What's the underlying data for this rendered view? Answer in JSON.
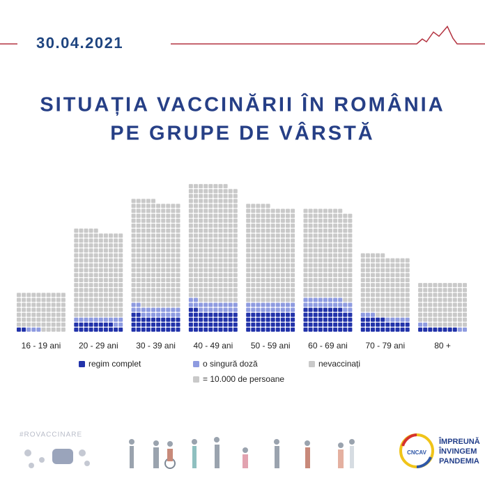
{
  "header": {
    "date": "30.04.2021"
  },
  "chart_data": {
    "type": "waffle",
    "title": [
      "SITUAȚIA VACCINĂRII ÎN ROMÂNIA",
      "PE GRUPE DE VÂRSTĂ"
    ],
    "categories": [
      "16 - 19 ani",
      "20 - 29 ani",
      "30 - 39 ani",
      "40 - 49 ani",
      "50 - 59 ani",
      "60 - 69 ani",
      "70 - 79 ani",
      "80 +"
    ],
    "square_value": {
      "value": 10000,
      "label": "= 10.000 de persoane"
    },
    "columns": 10,
    "series": [
      {
        "name": "regim complet",
        "color": "#2233aa",
        "values": [
          20000,
          180000,
          320000,
          420000,
          400000,
          480000,
          250000,
          80000
        ]
      },
      {
        "name": "o singură doză",
        "color": "#8e9be0",
        "values": [
          30000,
          120000,
          200000,
          200000,
          200000,
          200000,
          80000,
          40000
        ]
      },
      {
        "name": "nevaccinați",
        "color": "#c9c9c9",
        "values": [
          750000,
          1750000,
          2130000,
          2360000,
          1950000,
          1800000,
          1220000,
          880000
        ]
      }
    ]
  },
  "footer": {
    "hashtag": "#ROVACCINARE",
    "logo": "CNCAV",
    "slogan": [
      "ÎMPREUNĂ",
      "ÎNVINGEM",
      "PANDEMIA"
    ]
  }
}
